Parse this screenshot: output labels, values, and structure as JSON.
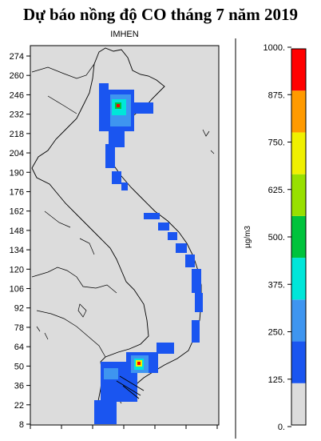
{
  "title": "Dự báo nồng độ CO tháng 7 năm 2019",
  "source_label": "IMHEN",
  "y_axis": {
    "ticks": [
      "274",
      "260",
      "246",
      "232",
      "218",
      "204",
      "190",
      "176",
      "162",
      "148",
      "134",
      "120",
      "106",
      "92",
      "78",
      "64",
      "50",
      "36",
      "22",
      "8"
    ]
  },
  "colorbar": {
    "unit": "µg/m3",
    "labels": [
      "1000.",
      "875.",
      "750.",
      "625.",
      "500.",
      "375.",
      "250.",
      "125.",
      "0."
    ],
    "bands": [
      {
        "from": 0,
        "to": 125,
        "color": "#dcdcdc"
      },
      {
        "from": 125,
        "to": 250,
        "color": "#1a55f0"
      },
      {
        "from": 250,
        "to": 375,
        "color": "#3e95f0"
      },
      {
        "from": 375,
        "to": 500,
        "color": "#00e6d9"
      },
      {
        "from": 500,
        "to": 625,
        "color": "#00c33c"
      },
      {
        "from": 625,
        "to": 750,
        "color": "#98e000"
      },
      {
        "from": 750,
        "to": 875,
        "color": "#f0f000"
      },
      {
        "from": 875,
        "to": 1000,
        "color": "#ff9a00"
      },
      {
        "from": 1000,
        "to": 1125,
        "color": "#ff0000"
      }
    ]
  }
}
